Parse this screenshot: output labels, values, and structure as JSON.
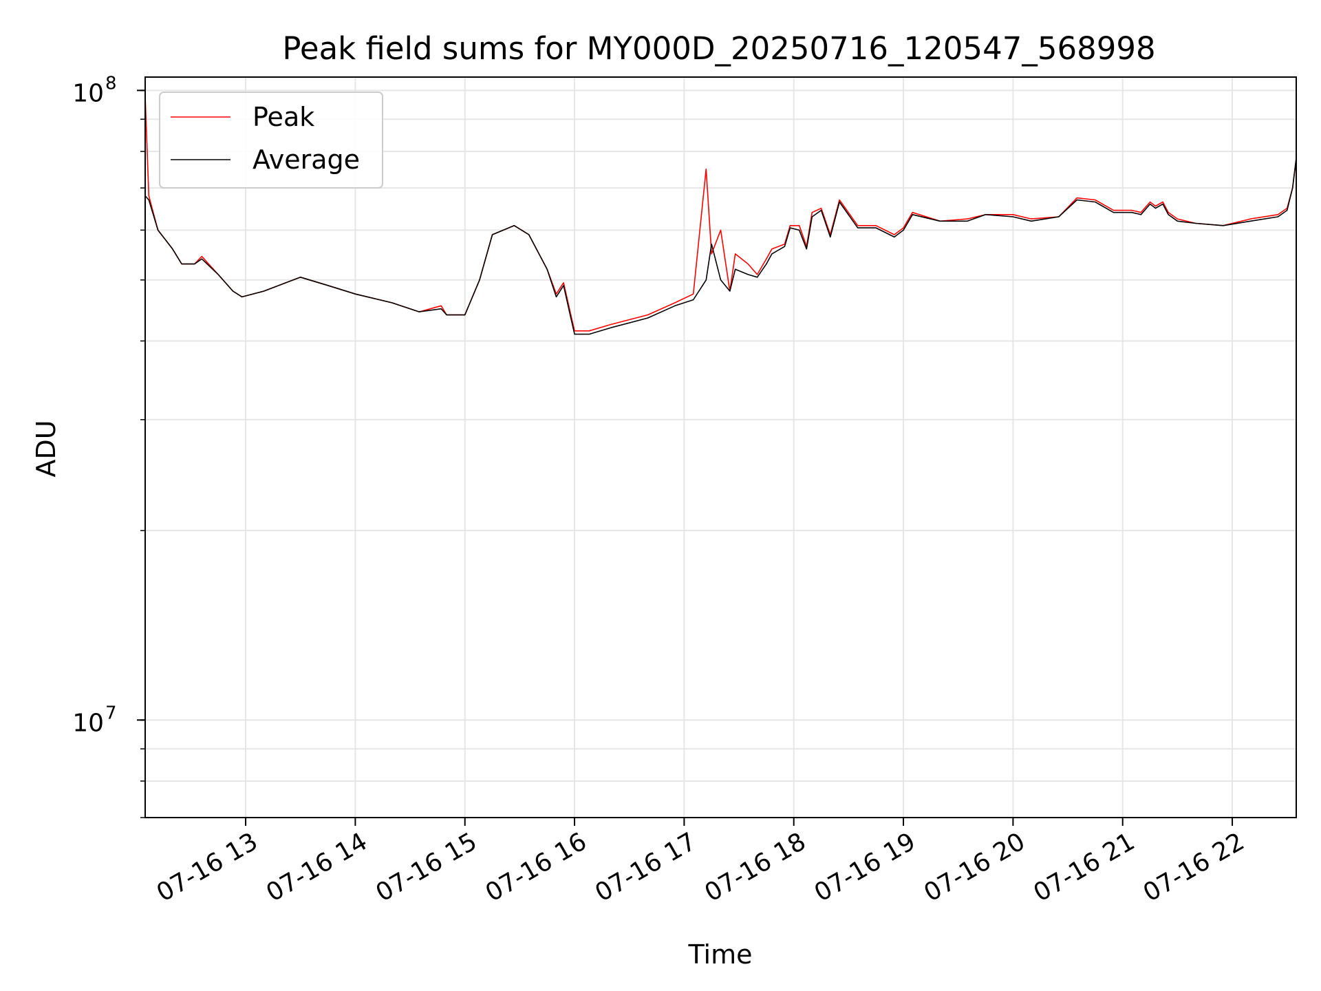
{
  "chart_data": {
    "type": "line",
    "title": "Peak field sums for MY000D_20250716_120547_568998",
    "xlabel": "Time",
    "ylabel": "ADU",
    "yscale": "log",
    "ylim": [
      7000000,
      105000000
    ],
    "xlim": [
      "07-16 12:05",
      "07-16 22:35"
    ],
    "grid": true,
    "legend": "top-left",
    "x_tick_labels": [
      "07-16 13",
      "07-16 14",
      "07-16 15",
      "07-16 16",
      "07-16 17",
      "07-16 18",
      "07-16 19",
      "07-16 20",
      "07-16 21",
      "07-16 22"
    ],
    "x_ticks": [
      "07-16 13:00",
      "07-16 14:00",
      "07-16 15:00",
      "07-16 16:00",
      "07-16 17:00",
      "07-16 18:00",
      "07-16 19:00",
      "07-16 20:00",
      "07-16 21:00",
      "07-16 22:00"
    ],
    "y_ticks": [
      {
        "value": 10000000,
        "base": "10",
        "exp": "7"
      },
      {
        "value": 100000000,
        "base": "10",
        "exp": "8"
      }
    ],
    "series": [
      {
        "name": "Peak",
        "color": "#ff0000",
        "x": [
          "07-16 12:05",
          "07-16 12:07",
          "07-16 12:12",
          "07-16 12:20",
          "07-16 12:25",
          "07-16 12:32",
          "07-16 12:36",
          "07-16 12:45",
          "07-16 12:53",
          "07-16 12:58",
          "07-16 13:10",
          "07-16 13:30",
          "07-16 13:45",
          "07-16 14:00",
          "07-16 14:20",
          "07-16 14:35",
          "07-16 14:47",
          "07-16 14:50",
          "07-16 15:00",
          "07-16 15:08",
          "07-16 15:15",
          "07-16 15:27",
          "07-16 15:35",
          "07-16 15:45",
          "07-16 15:50",
          "07-16 15:54",
          "07-16 15:58",
          "07-16 16:00",
          "07-16 16:08",
          "07-16 16:20",
          "07-16 16:40",
          "07-16 16:55",
          "07-16 17:05",
          "07-16 17:12",
          "07-16 17:15",
          "07-16 17:20",
          "07-16 17:25",
          "07-16 17:28",
          "07-16 17:35",
          "07-16 17:40",
          "07-16 17:45",
          "07-16 17:48",
          "07-16 17:55",
          "07-16 17:58",
          "07-16 18:03",
          "07-16 18:07",
          "07-16 18:10",
          "07-16 18:15",
          "07-16 18:20",
          "07-16 18:25",
          "07-16 18:35",
          "07-16 18:45",
          "07-16 18:55",
          "07-16 19:00",
          "07-16 19:05",
          "07-16 19:20",
          "07-16 19:35",
          "07-16 19:45",
          "07-16 20:00",
          "07-16 20:10",
          "07-16 20:25",
          "07-16 20:35",
          "07-16 20:45",
          "07-16 20:55",
          "07-16 21:05",
          "07-16 21:10",
          "07-16 21:15",
          "07-16 21:18",
          "07-16 21:22",
          "07-16 21:25",
          "07-16 21:30",
          "07-16 21:40",
          "07-16 21:55",
          "07-16 22:10",
          "07-16 22:25",
          "07-16 22:30",
          "07-16 22:33",
          "07-16 22:35"
        ],
        "values": [
          98000000,
          68000000,
          60000000,
          56000000,
          53000000,
          53000000,
          54500000,
          51000000,
          48000000,
          47000000,
          48000000,
          50500000,
          49000000,
          47500000,
          46000000,
          44500000,
          45500000,
          44000000,
          44000000,
          50000000,
          59000000,
          61000000,
          59000000,
          52000000,
          47500000,
          49500000,
          44000000,
          41500000,
          41500000,
          42500000,
          44000000,
          46000000,
          47500000,
          75000000,
          55000000,
          60000000,
          48000000,
          55000000,
          53000000,
          51000000,
          54000000,
          56000000,
          57000000,
          61000000,
          61000000,
          56500000,
          64000000,
          65000000,
          59000000,
          67000000,
          61000000,
          61000000,
          59000000,
          60500000,
          64000000,
          62000000,
          62500000,
          63500000,
          63500000,
          62500000,
          63000000,
          67500000,
          67000000,
          64500000,
          64500000,
          64000000,
          66500000,
          65500000,
          66500000,
          64000000,
          62500000,
          61500000,
          61000000,
          62500000,
          63500000,
          65000000,
          70000000,
          78000000
        ]
      },
      {
        "name": "Average",
        "color": "#000000",
        "x": [
          "07-16 12:05",
          "07-16 12:07",
          "07-16 12:12",
          "07-16 12:20",
          "07-16 12:25",
          "07-16 12:32",
          "07-16 12:36",
          "07-16 12:45",
          "07-16 12:53",
          "07-16 12:58",
          "07-16 13:10",
          "07-16 13:30",
          "07-16 13:45",
          "07-16 14:00",
          "07-16 14:20",
          "07-16 14:35",
          "07-16 14:47",
          "07-16 14:50",
          "07-16 15:00",
          "07-16 15:08",
          "07-16 15:15",
          "07-16 15:27",
          "07-16 15:35",
          "07-16 15:45",
          "07-16 15:50",
          "07-16 15:54",
          "07-16 15:58",
          "07-16 16:00",
          "07-16 16:08",
          "07-16 16:20",
          "07-16 16:40",
          "07-16 16:55",
          "07-16 17:05",
          "07-16 17:12",
          "07-16 17:15",
          "07-16 17:20",
          "07-16 17:25",
          "07-16 17:28",
          "07-16 17:35",
          "07-16 17:40",
          "07-16 17:45",
          "07-16 17:48",
          "07-16 17:55",
          "07-16 17:58",
          "07-16 18:03",
          "07-16 18:07",
          "07-16 18:10",
          "07-16 18:15",
          "07-16 18:20",
          "07-16 18:25",
          "07-16 18:35",
          "07-16 18:45",
          "07-16 18:55",
          "07-16 19:00",
          "07-16 19:05",
          "07-16 19:20",
          "07-16 19:35",
          "07-16 19:45",
          "07-16 20:00",
          "07-16 20:10",
          "07-16 20:25",
          "07-16 20:35",
          "07-16 20:45",
          "07-16 20:55",
          "07-16 21:05",
          "07-16 21:10",
          "07-16 21:15",
          "07-16 21:18",
          "07-16 21:22",
          "07-16 21:25",
          "07-16 21:30",
          "07-16 21:40",
          "07-16 21:55",
          "07-16 22:10",
          "07-16 22:25",
          "07-16 22:30",
          "07-16 22:33",
          "07-16 22:35"
        ],
        "values": [
          68000000,
          67000000,
          60000000,
          56000000,
          53000000,
          53000000,
          54000000,
          51000000,
          48000000,
          47000000,
          48000000,
          50500000,
          49000000,
          47500000,
          46000000,
          44500000,
          45000000,
          44000000,
          44000000,
          50000000,
          59000000,
          61000000,
          59000000,
          52000000,
          47000000,
          49000000,
          43500000,
          41000000,
          41000000,
          42000000,
          43500000,
          45500000,
          46500000,
          50000000,
          57000000,
          50000000,
          48000000,
          52000000,
          51000000,
          50500000,
          53000000,
          55000000,
          56500000,
          60500000,
          60000000,
          56000000,
          63000000,
          64500000,
          58500000,
          66500000,
          60500000,
          60500000,
          58500000,
          60000000,
          63500000,
          62000000,
          62000000,
          63500000,
          63000000,
          62000000,
          63000000,
          67000000,
          66500000,
          64000000,
          64000000,
          63500000,
          66000000,
          65000000,
          66000000,
          63500000,
          62000000,
          61500000,
          61000000,
          62000000,
          63000000,
          64500000,
          70000000,
          78000000
        ]
      }
    ]
  }
}
